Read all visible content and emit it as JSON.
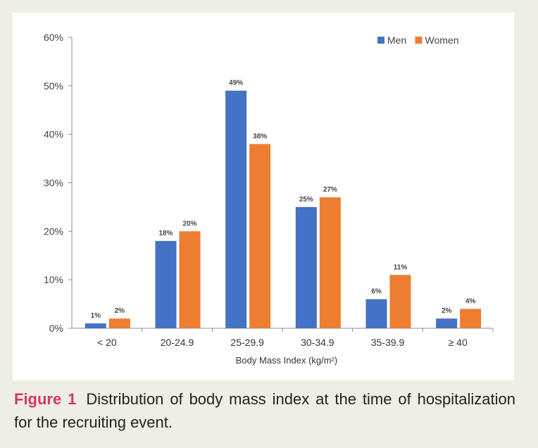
{
  "chart_data": {
    "type": "bar",
    "categories": [
      "< 20",
      "20-24.9",
      "25-29.9",
      "30-34.9",
      "35-39.9",
      "≥ 40"
    ],
    "series": [
      {
        "name": "Men",
        "values": [
          1,
          18,
          49,
          25,
          6,
          2
        ],
        "labels": [
          "1%",
          "18%",
          "49%",
          "25%",
          "6%",
          "2%"
        ],
        "color": "#4472c4"
      },
      {
        "name": "Women",
        "values": [
          2,
          20,
          38,
          27,
          11,
          4
        ],
        "labels": [
          "2%",
          "20%",
          "38%",
          "27%",
          "11%",
          "4%"
        ],
        "color": "#ed7d31"
      }
    ],
    "xlabel": "Body Mass Index (kg/m²)",
    "ylabel": "",
    "ylim": [
      0,
      60
    ],
    "yticks": [
      "0%",
      "10%",
      "20%",
      "30%",
      "40%",
      "50%",
      "60%"
    ],
    "grid": false,
    "legend_position": "top-right"
  },
  "caption": {
    "label": "Figure 1",
    "text": "Distribution of body mass index at the time of hospitalization for the recruiting event."
  }
}
